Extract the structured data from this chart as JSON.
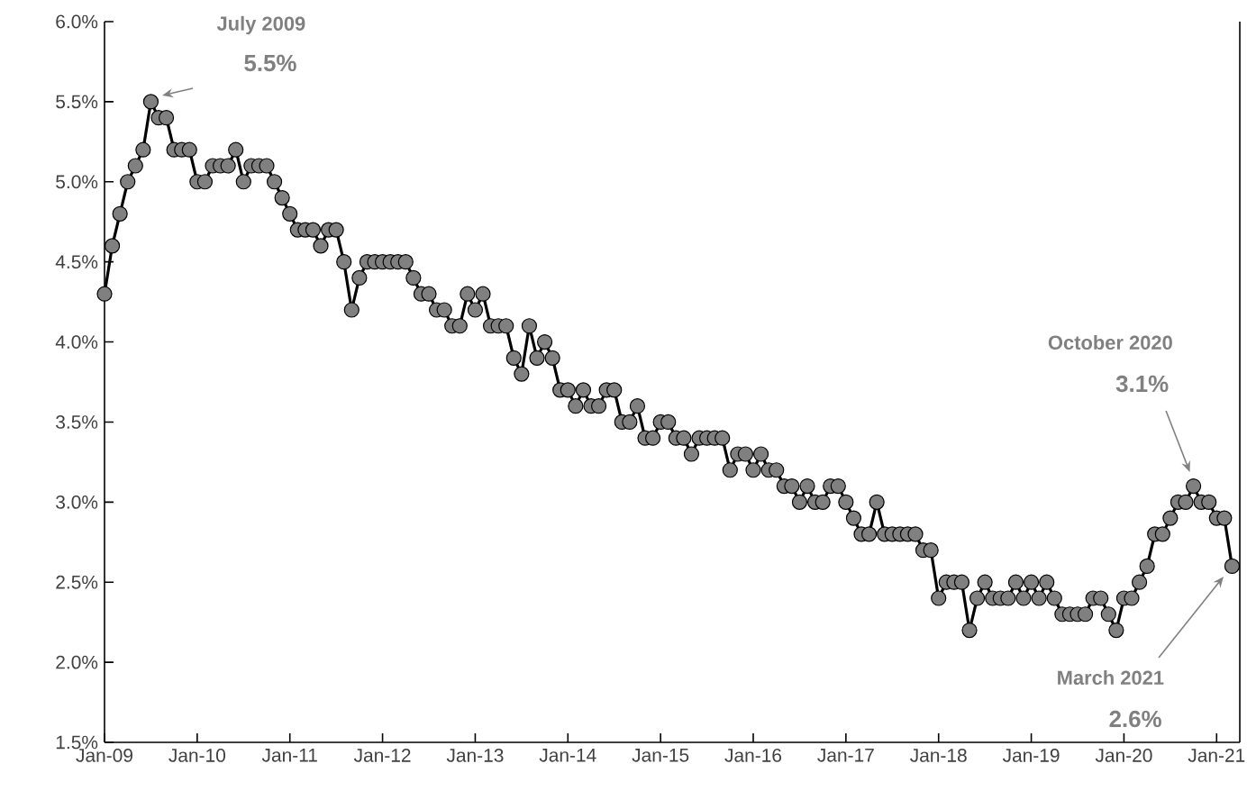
{
  "chart_data": {
    "type": "line",
    "x": [
      "2009-01",
      "2009-02",
      "2009-03",
      "2009-04",
      "2009-05",
      "2009-06",
      "2009-07",
      "2009-08",
      "2009-09",
      "2009-10",
      "2009-11",
      "2009-12",
      "2010-01",
      "2010-02",
      "2010-03",
      "2010-04",
      "2010-05",
      "2010-06",
      "2010-07",
      "2010-08",
      "2010-09",
      "2010-10",
      "2010-11",
      "2010-12",
      "2011-01",
      "2011-02",
      "2011-03",
      "2011-04",
      "2011-05",
      "2011-06",
      "2011-07",
      "2011-08",
      "2011-09",
      "2011-10",
      "2011-11",
      "2011-12",
      "2012-01",
      "2012-02",
      "2012-03",
      "2012-04",
      "2012-05",
      "2012-06",
      "2012-07",
      "2012-08",
      "2012-09",
      "2012-10",
      "2012-11",
      "2012-12",
      "2013-01",
      "2013-02",
      "2013-03",
      "2013-04",
      "2013-05",
      "2013-06",
      "2013-07",
      "2013-08",
      "2013-09",
      "2013-10",
      "2013-11",
      "2013-12",
      "2014-01",
      "2014-02",
      "2014-03",
      "2014-04",
      "2014-05",
      "2014-06",
      "2014-07",
      "2014-08",
      "2014-09",
      "2014-10",
      "2014-11",
      "2014-12",
      "2015-01",
      "2015-02",
      "2015-03",
      "2015-04",
      "2015-05",
      "2015-06",
      "2015-07",
      "2015-08",
      "2015-09",
      "2015-10",
      "2015-11",
      "2015-12",
      "2016-01",
      "2016-02",
      "2016-03",
      "2016-04",
      "2016-05",
      "2016-06",
      "2016-07",
      "2016-08",
      "2016-09",
      "2016-10",
      "2016-11",
      "2016-12",
      "2017-01",
      "2017-02",
      "2017-03",
      "2017-04",
      "2017-05",
      "2017-06",
      "2017-07",
      "2017-08",
      "2017-09",
      "2017-10",
      "2017-11",
      "2017-12",
      "2018-01",
      "2018-02",
      "2018-03",
      "2018-04",
      "2018-05",
      "2018-06",
      "2018-07",
      "2018-08",
      "2018-09",
      "2018-10",
      "2018-11",
      "2018-12",
      "2019-01",
      "2019-02",
      "2019-03",
      "2019-04",
      "2019-05",
      "2019-06",
      "2019-07",
      "2019-08",
      "2019-09",
      "2019-10",
      "2019-11",
      "2019-12",
      "2020-01",
      "2020-02",
      "2020-03",
      "2020-04",
      "2020-05",
      "2020-06",
      "2020-07",
      "2020-08",
      "2020-09",
      "2020-10",
      "2020-11",
      "2020-12",
      "2021-01",
      "2021-02",
      "2021-03"
    ],
    "values": [
      4.3,
      4.6,
      4.8,
      5.0,
      5.1,
      5.2,
      5.5,
      5.4,
      5.4,
      5.2,
      5.2,
      5.2,
      5.0,
      5.0,
      5.1,
      5.1,
      5.1,
      5.2,
      5.0,
      5.1,
      5.1,
      5.1,
      5.0,
      4.9,
      4.8,
      4.7,
      4.7,
      4.7,
      4.6,
      4.7,
      4.7,
      4.5,
      4.2,
      4.4,
      4.5,
      4.5,
      4.5,
      4.5,
      4.5,
      4.5,
      4.4,
      4.3,
      4.3,
      4.2,
      4.2,
      4.1,
      4.1,
      4.3,
      4.2,
      4.3,
      4.1,
      4.1,
      4.1,
      3.9,
      3.8,
      4.1,
      3.9,
      4.0,
      3.9,
      3.7,
      3.7,
      3.6,
      3.7,
      3.6,
      3.6,
      3.7,
      3.7,
      3.5,
      3.5,
      3.6,
      3.4,
      3.4,
      3.5,
      3.5,
      3.4,
      3.4,
      3.3,
      3.4,
      3.4,
      3.4,
      3.4,
      3.2,
      3.3,
      3.3,
      3.2,
      3.3,
      3.2,
      3.2,
      3.1,
      3.1,
      3.0,
      3.1,
      3.0,
      3.0,
      3.1,
      3.1,
      3.0,
      2.9,
      2.8,
      2.8,
      3.0,
      2.8,
      2.8,
      2.8,
      2.8,
      2.8,
      2.7,
      2.7,
      2.4,
      2.5,
      2.5,
      2.5,
      2.2,
      2.4,
      2.5,
      2.4,
      2.4,
      2.4,
      2.5,
      2.4,
      2.5,
      2.4,
      2.5,
      2.4,
      2.3,
      2.3,
      2.3,
      2.3,
      2.4,
      2.4,
      2.3,
      2.2,
      2.4,
      2.4,
      2.5,
      2.6,
      2.8,
      2.8,
      2.9,
      3.0,
      3.0,
      3.1,
      3.0,
      3.0,
      2.9,
      2.9,
      2.6
    ],
    "color": "#808080",
    "marker": "circle",
    "line_style": "solid",
    "grid": false,
    "xlim": [
      "2009-01",
      "2021-04"
    ],
    "xticks": [
      {
        "value": "2009-01",
        "label": "Jan-09"
      },
      {
        "value": "2010-01",
        "label": "Jan-10"
      },
      {
        "value": "2011-01",
        "label": "Jan-11"
      },
      {
        "value": "2012-01",
        "label": "Jan-12"
      },
      {
        "value": "2013-01",
        "label": "Jan-13"
      },
      {
        "value": "2014-01",
        "label": "Jan-14"
      },
      {
        "value": "2015-01",
        "label": "Jan-15"
      },
      {
        "value": "2016-01",
        "label": "Jan-16"
      },
      {
        "value": "2017-01",
        "label": "Jan-17"
      },
      {
        "value": "2018-01",
        "label": "Jan-18"
      },
      {
        "value": "2019-01",
        "label": "Jan-19"
      },
      {
        "value": "2020-01",
        "label": "Jan-20"
      },
      {
        "value": "2021-01",
        "label": "Jan-21"
      }
    ],
    "ylim": [
      1.5,
      6.0
    ],
    "yticks": [
      {
        "value": 1.5,
        "label": "1.5%"
      },
      {
        "value": 2.0,
        "label": "2.0%"
      },
      {
        "value": 2.5,
        "label": "2.5%"
      },
      {
        "value": 3.0,
        "label": "3.0%"
      },
      {
        "value": 3.5,
        "label": "3.5%"
      },
      {
        "value": 4.0,
        "label": "4.0%"
      },
      {
        "value": 4.5,
        "label": "4.5%"
      },
      {
        "value": 5.0,
        "label": "5.0%"
      },
      {
        "value": 5.5,
        "label": "5.5%"
      },
      {
        "value": 6.0,
        "label": "6.0%"
      }
    ],
    "annotations": [
      "July 2009",
      "5.5%",
      "October 2020",
      "3.1%",
      "March 2021",
      "2.6%"
    ]
  }
}
